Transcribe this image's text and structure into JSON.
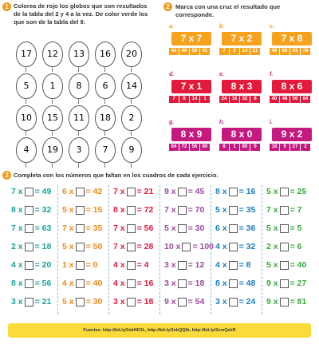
{
  "section1": {
    "number": "1",
    "instruction": "Colorea de rojo los globos que son resultados de la tabla del 2 y 4 a la vez. De color verde los que son de la tabla del 9.",
    "balloons": [
      [
        "17",
        "12",
        "13",
        "16",
        "20"
      ],
      [
        "5",
        "1",
        "8",
        "6",
        "14"
      ],
      [
        "10",
        "15",
        "11",
        "18",
        "2"
      ],
      [
        "4",
        "19",
        "3",
        "7",
        "9"
      ]
    ]
  },
  "section2": {
    "number": "2",
    "instruction": "Marca con una cruz el resultado que corresponde.",
    "items": [
      {
        "letter": "a.",
        "expression": "7 x 7",
        "options": [
          "43",
          "49",
          "56",
          "41"
        ]
      },
      {
        "letter": "b.",
        "expression": "7 x 2",
        "options": [
          "7",
          "2",
          "14",
          "21"
        ]
      },
      {
        "letter": "c.",
        "expression": "7 x 8",
        "options": [
          "49",
          "56",
          "63",
          "78"
        ]
      },
      {
        "letter": "d.",
        "expression": "7 x 1",
        "options": [
          "7",
          "8",
          "14",
          "1"
        ]
      },
      {
        "letter": "e.",
        "expression": "8 x 3",
        "options": [
          "24",
          "16",
          "32",
          "8"
        ]
      },
      {
        "letter": "f.",
        "expression": "8 x 6",
        "options": [
          "40",
          "48",
          "56",
          "64"
        ]
      },
      {
        "letter": "g.",
        "expression": "8 x 9",
        "options": [
          "64",
          "72",
          "56",
          "80"
        ]
      },
      {
        "letter": "h.",
        "expression": "8 x 0",
        "options": [
          "8",
          "1",
          "80",
          "0"
        ]
      },
      {
        "letter": "i.",
        "expression": "9 x 2",
        "options": [
          "18",
          "9",
          "27",
          "2"
        ]
      }
    ]
  },
  "section3": {
    "number": "3",
    "instruction": "Completa con los números que faltan en los cuadros de cada ejercicio.",
    "columns": [
      [
        [
          "7 x",
          "= 49"
        ],
        [
          "8 x",
          "= 32"
        ],
        [
          "7 x",
          "= 63"
        ],
        [
          "2 x",
          "= 18"
        ],
        [
          "4 x",
          "= 20"
        ],
        [
          "8 x",
          "= 56"
        ],
        [
          "3 x",
          "= 21"
        ]
      ],
      [
        [
          "6 x",
          "= 42"
        ],
        [
          "5 x",
          "= 15"
        ],
        [
          "7 x",
          "= 35"
        ],
        [
          "5 x",
          "= 50"
        ],
        [
          "1 x",
          "= 0"
        ],
        [
          "4 x",
          "= 40"
        ],
        [
          "5 x",
          "= 30"
        ]
      ],
      [
        [
          "7 x",
          "= 21"
        ],
        [
          "8 x",
          "= 72"
        ],
        [
          "7 x",
          "= 56"
        ],
        [
          "7 x",
          "= 28"
        ],
        [
          "4 x",
          "= 4"
        ],
        [
          "4 x",
          "= 16"
        ],
        [
          "3 x",
          "= 18"
        ]
      ],
      [
        [
          "9 x",
          "= 45"
        ],
        [
          "7 x",
          "= 70"
        ],
        [
          "5 x",
          "= 30"
        ],
        [
          "10 x",
          "= 100"
        ],
        [
          "3 x",
          "= 12"
        ],
        [
          "3 x",
          "= 18"
        ],
        [
          "9 x",
          "= 54"
        ]
      ],
      [
        [
          "8 x",
          "= 16"
        ],
        [
          "5 x",
          "= 35"
        ],
        [
          "6 x",
          "= 36"
        ],
        [
          "4 x",
          "= 32"
        ],
        [
          "4 x",
          "= 8"
        ],
        [
          "8 x",
          "= 48"
        ],
        [
          "3 x",
          "= 24"
        ]
      ],
      [
        [
          "5 x",
          "= 25"
        ],
        [
          "7 x",
          "= 7"
        ],
        [
          "5 x",
          "= 5"
        ],
        [
          "2 x",
          "= 6"
        ],
        [
          "5 x",
          "= 40"
        ],
        [
          "9 x",
          "= 27"
        ],
        [
          "9 x",
          "= 81"
        ]
      ]
    ]
  },
  "footer": "Fuentes: http://bit.ly/2ekHK3L, http://bit.ly/2ebQQlb, http://bit.ly/2emQzbR"
}
